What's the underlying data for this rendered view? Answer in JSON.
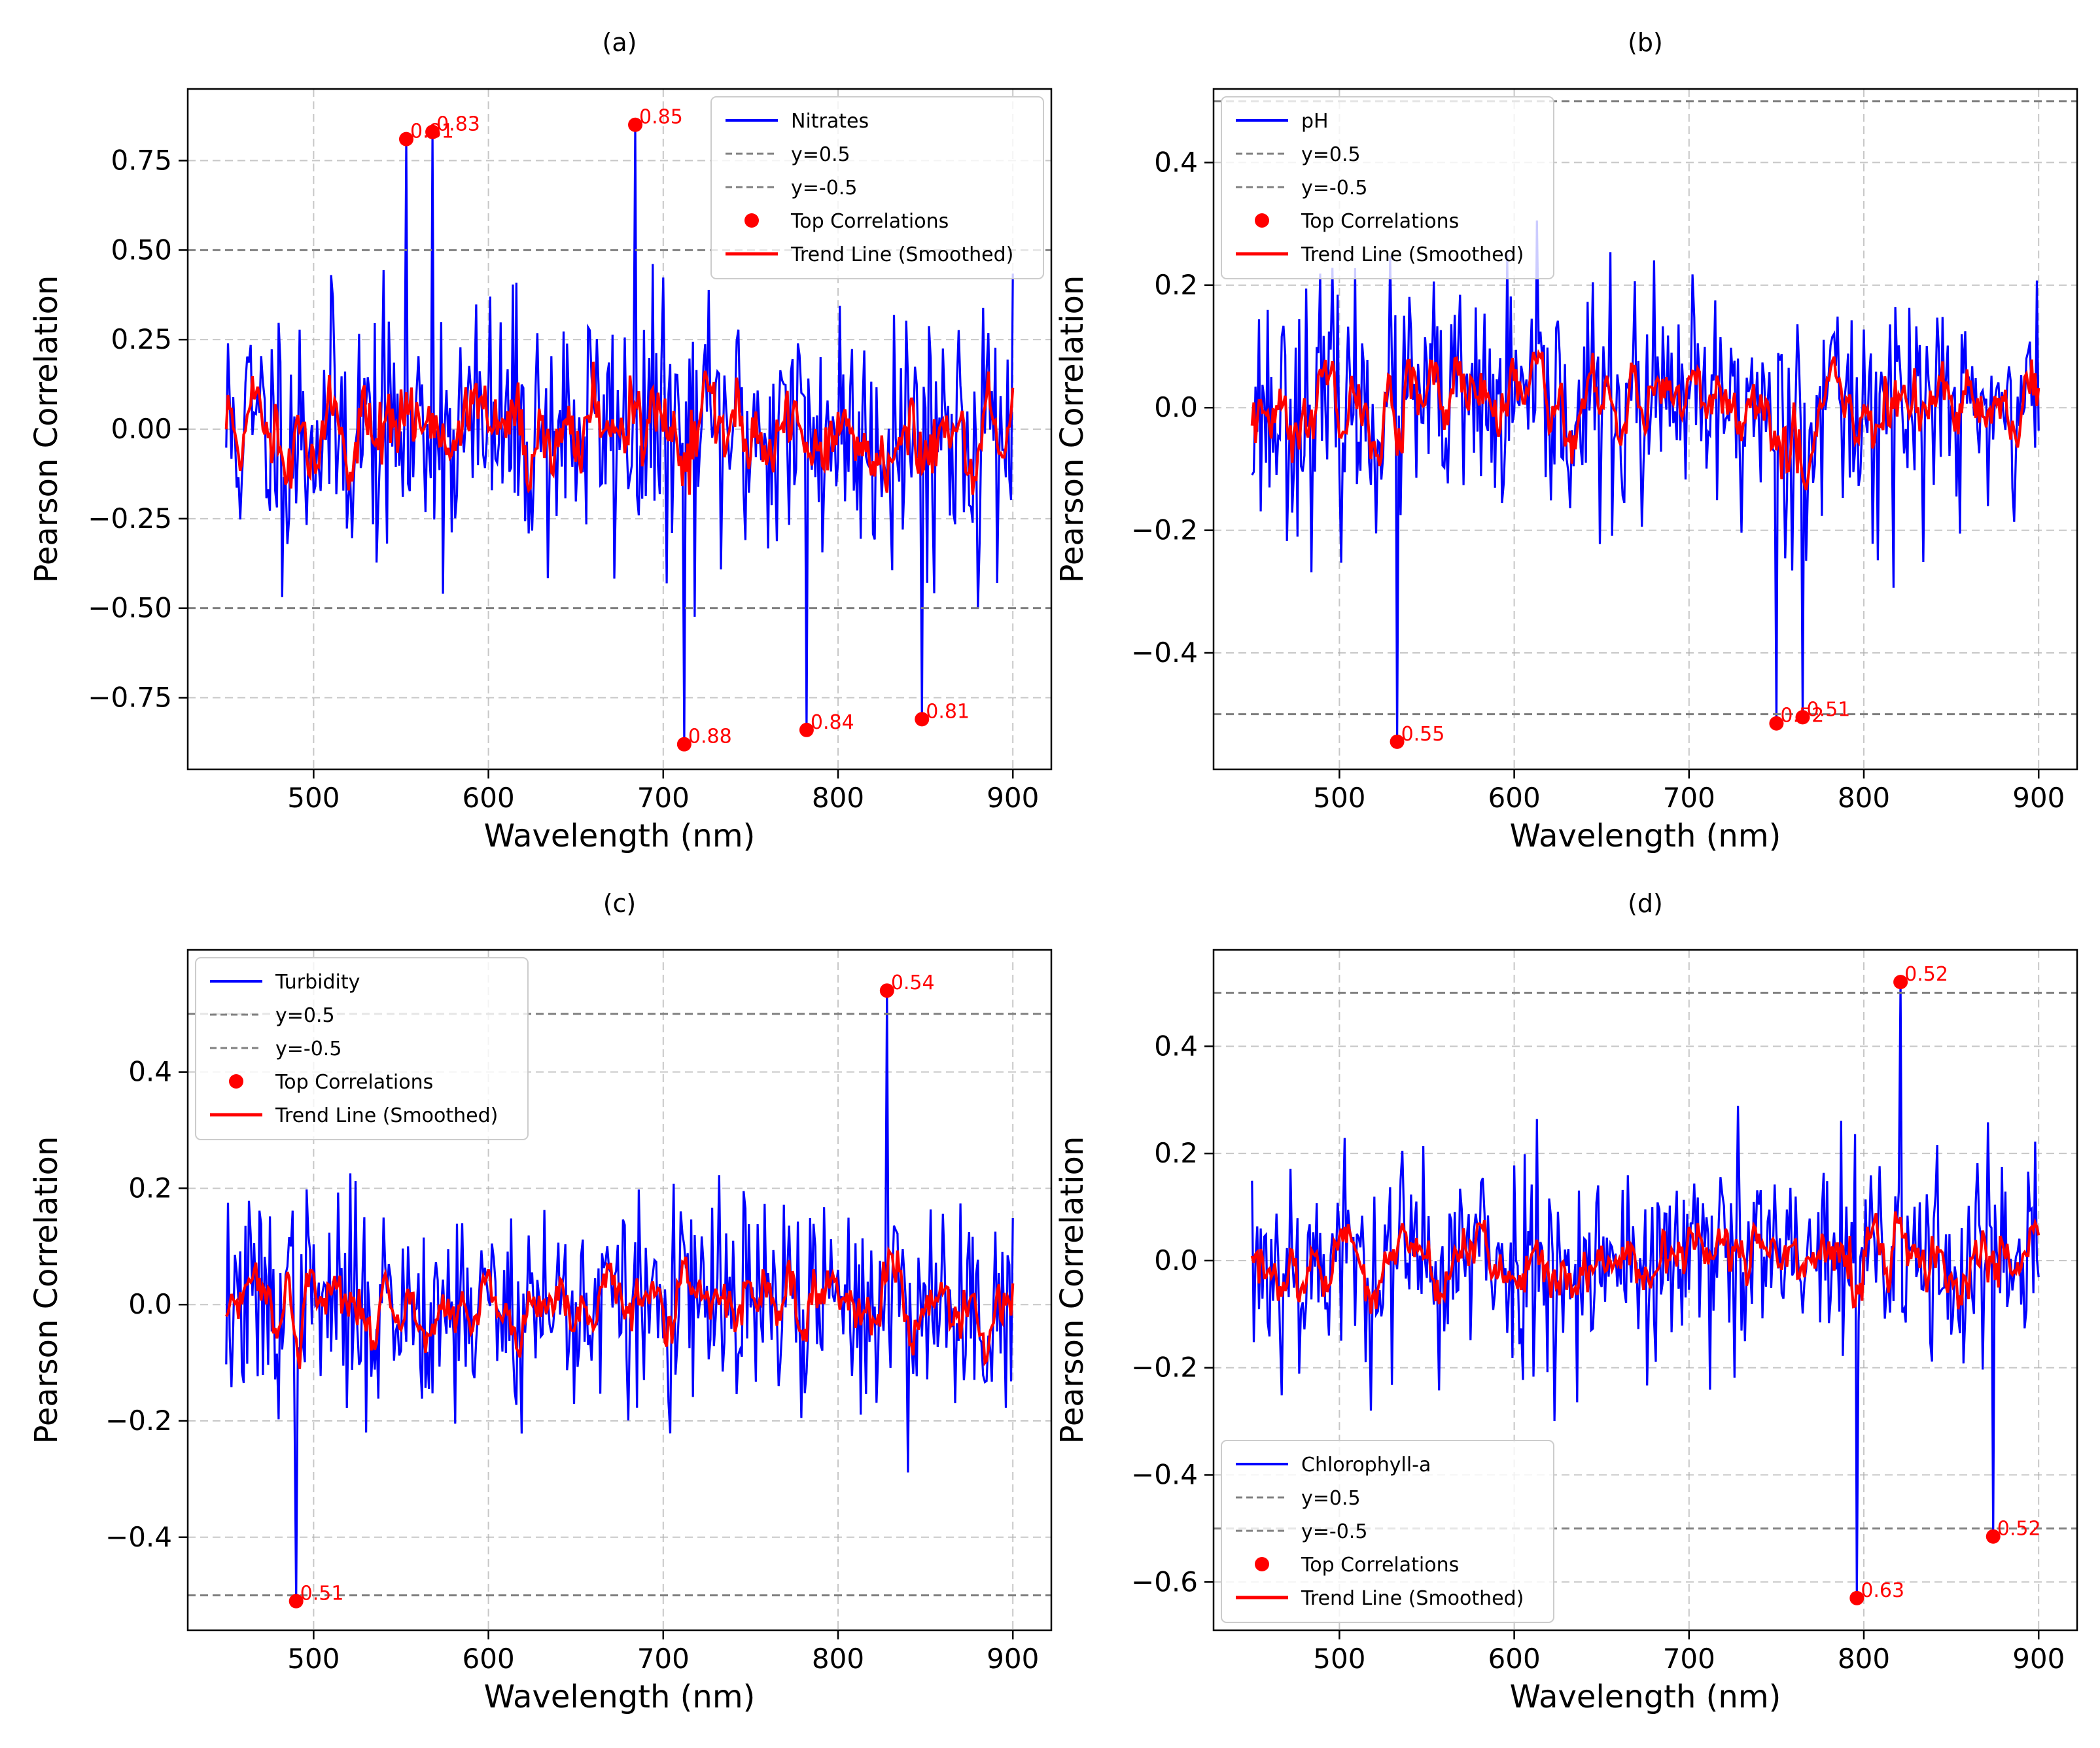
{
  "chart_data": [
    {
      "panel_label": "(a)",
      "type": "line",
      "xlabel": "Wavelength (nm)",
      "ylabel": "Pearson Correlation",
      "xlim": [
        428,
        922
      ],
      "ylim": [
        -0.95,
        0.95
      ],
      "xticks": [
        500,
        600,
        700,
        800,
        900
      ],
      "xtick_labels": [
        "500",
        "600",
        "700",
        "800",
        "900"
      ],
      "yticks": [
        -0.75,
        -0.5,
        -0.25,
        0.0,
        0.25,
        0.5,
        0.75
      ],
      "ytick_labels": [
        "−0.75",
        "−0.50",
        "−0.25",
        "0.00",
        "0.25",
        "0.50",
        "0.75"
      ],
      "grid": true,
      "legend_position": "top-right",
      "legend": [
        "Nitrates",
        "y=0.5",
        "y=-0.5",
        "Top Correlations",
        "Trend Line (Smoothed)"
      ],
      "hlines": [
        0.5,
        -0.5
      ],
      "series_seed": 11,
      "series_amp": 0.3,
      "trend_amp": 0.22,
      "wavelength_range": [
        450,
        900
      ],
      "top_points": [
        {
          "x": 553,
          "y": 0.81,
          "label": "0.81"
        },
        {
          "x": 568,
          "y": 0.83,
          "label": "0.83"
        },
        {
          "x": 684,
          "y": 0.85,
          "label": "0.85"
        },
        {
          "x": 712,
          "y": -0.88,
          "label": "0.88"
        },
        {
          "x": 782,
          "y": -0.84,
          "label": "0.84"
        },
        {
          "x": 848,
          "y": -0.81,
          "label": "0.81"
        }
      ]
    },
    {
      "panel_label": "(b)",
      "type": "line",
      "xlabel": "Wavelength (nm)",
      "ylabel": "Pearson Correlation",
      "xlim": [
        428,
        922
      ],
      "ylim": [
        -0.59,
        0.52
      ],
      "xticks": [
        500,
        600,
        700,
        800,
        900
      ],
      "xtick_labels": [
        "500",
        "600",
        "700",
        "800",
        "900"
      ],
      "yticks": [
        -0.4,
        -0.2,
        0.0,
        0.2,
        0.4
      ],
      "ytick_labels": [
        "−0.4",
        "−0.2",
        "0.0",
        "0.2",
        "0.4"
      ],
      "grid": true,
      "legend_position": "top-left",
      "legend": [
        "pH",
        "y=0.5",
        "y=-0.5",
        "Top Correlations",
        "Trend Line (Smoothed)"
      ],
      "hlines": [
        0.5,
        -0.5
      ],
      "series_seed": 23,
      "series_amp": 0.16,
      "trend_amp": 0.1,
      "wavelength_range": [
        450,
        900
      ],
      "top_points": [
        {
          "x": 533,
          "y": -0.545,
          "label": "0.55"
        },
        {
          "x": 750,
          "y": -0.515,
          "label": "0.52"
        },
        {
          "x": 765,
          "y": -0.505,
          "label": "0.51"
        }
      ]
    },
    {
      "panel_label": "(c)",
      "type": "line",
      "xlabel": "Wavelength (nm)",
      "ylabel": "Pearson Correlation",
      "xlim": [
        428,
        922
      ],
      "ylim": [
        -0.56,
        0.61
      ],
      "xticks": [
        500,
        600,
        700,
        800,
        900
      ],
      "xtick_labels": [
        "500",
        "600",
        "700",
        "800",
        "900"
      ],
      "yticks": [
        -0.4,
        -0.2,
        0.0,
        0.2,
        0.4
      ],
      "ytick_labels": [
        "−0.4",
        "−0.2",
        "0.0",
        "0.2",
        "0.4"
      ],
      "grid": true,
      "legend_position": "top-left",
      "legend": [
        "Turbidity",
        "y=0.5",
        "y=-0.5",
        "Top Correlations",
        "Trend Line (Smoothed)"
      ],
      "hlines": [
        0.5,
        -0.5
      ],
      "series_seed": 37,
      "series_amp": 0.15,
      "trend_amp": 0.09,
      "wavelength_range": [
        450,
        900
      ],
      "top_points": [
        {
          "x": 490,
          "y": -0.51,
          "label": "0.51"
        },
        {
          "x": 828,
          "y": 0.54,
          "label": "0.54"
        }
      ]
    },
    {
      "panel_label": "(d)",
      "type": "line",
      "xlabel": "Wavelength (nm)",
      "ylabel": "Pearson Correlation",
      "xlim": [
        428,
        922
      ],
      "ylim": [
        -0.69,
        0.58
      ],
      "xticks": [
        500,
        600,
        700,
        800,
        900
      ],
      "xtick_labels": [
        "500",
        "600",
        "700",
        "800",
        "900"
      ],
      "yticks": [
        -0.6,
        -0.4,
        -0.2,
        0.0,
        0.2,
        0.4
      ],
      "ytick_labels": [
        "−0.6",
        "−0.4",
        "−0.2",
        "0.0",
        "0.2",
        "0.4"
      ],
      "grid": true,
      "legend_position": "bottom-left",
      "legend": [
        "Chlorophyll-a",
        "y=0.5",
        "y=-0.5",
        "Top Correlations",
        "Trend Line (Smoothed)"
      ],
      "hlines": [
        0.5,
        -0.5
      ],
      "series_seed": 53,
      "series_amp": 0.17,
      "trend_amp": 0.1,
      "wavelength_range": [
        450,
        900
      ],
      "top_points": [
        {
          "x": 796,
          "y": -0.63,
          "label": "0.63"
        },
        {
          "x": 821,
          "y": 0.52,
          "label": "0.52"
        },
        {
          "x": 874,
          "y": -0.515,
          "label": "0.52"
        }
      ]
    }
  ],
  "colors": {
    "series": "#0000ff",
    "trend": "#ff0000",
    "points": "#ff0000",
    "hline": "#808080",
    "grid": "#b0b0b0",
    "axis": "#000000"
  }
}
